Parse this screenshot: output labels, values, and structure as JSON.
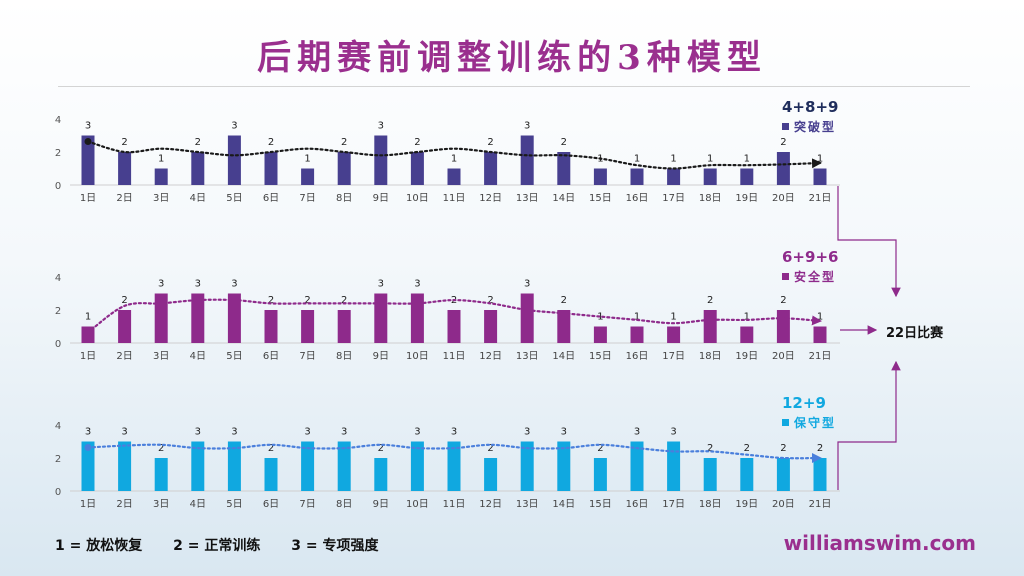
{
  "title": "后期赛前调整训练的3种模型",
  "legend_key": [
    "1 = 放松恢复",
    "2 = 正常训练",
    "3 = 专项强度"
  ],
  "website": "williamswim.com",
  "race_label": "22日比赛",
  "chart_data": [
    {
      "type": "bar",
      "name": "突破型",
      "formula": "4+8+9",
      "color": "#473f8f",
      "trend_color": "#1a1a1a",
      "categories": [
        "1日",
        "2日",
        "3日",
        "4日",
        "5日",
        "6日",
        "7日",
        "8日",
        "9日",
        "10日",
        "11日",
        "12日",
        "13日",
        "14日",
        "15日",
        "16日",
        "17日",
        "18日",
        "19日",
        "20日",
        "21日"
      ],
      "values": [
        3,
        2,
        1,
        2,
        3,
        2,
        1,
        2,
        3,
        2,
        1,
        2,
        3,
        2,
        1,
        1,
        1,
        1,
        1,
        2,
        1
      ],
      "yticks": [
        0,
        2,
        4
      ],
      "ylim": [
        0,
        4
      ]
    },
    {
      "type": "bar",
      "name": "安全型",
      "formula": "6+9+6",
      "color": "#8e2a8b",
      "trend_color": "#8e2a8b",
      "categories": [
        "1日",
        "2日",
        "3日",
        "4日",
        "5日",
        "6日",
        "7日",
        "8日",
        "9日",
        "10日",
        "11日",
        "12日",
        "13日",
        "14日",
        "15日",
        "16日",
        "17日",
        "18日",
        "19日",
        "20日",
        "21日"
      ],
      "values": [
        1,
        2,
        3,
        3,
        3,
        2,
        2,
        2,
        3,
        3,
        2,
        2,
        3,
        2,
        1,
        1,
        1,
        2,
        1,
        2,
        1
      ],
      "yticks": [
        0,
        2,
        4
      ],
      "ylim": [
        0,
        4
      ]
    },
    {
      "type": "bar",
      "name": "保守型",
      "formula": "12+9",
      "color": "#10a8e0",
      "trend_color": "#4a7fdc",
      "categories": [
        "1日",
        "2日",
        "3日",
        "4日",
        "5日",
        "6日",
        "7日",
        "8日",
        "9日",
        "10日",
        "11日",
        "12日",
        "13日",
        "14日",
        "15日",
        "16日",
        "17日",
        "18日",
        "19日",
        "20日",
        "21日"
      ],
      "values": [
        3,
        3,
        2,
        3,
        3,
        2,
        3,
        3,
        2,
        3,
        3,
        2,
        3,
        3,
        2,
        3,
        3,
        2,
        2,
        2,
        2
      ],
      "yticks": [
        0,
        2,
        4
      ],
      "ylim": [
        0,
        4
      ]
    }
  ]
}
